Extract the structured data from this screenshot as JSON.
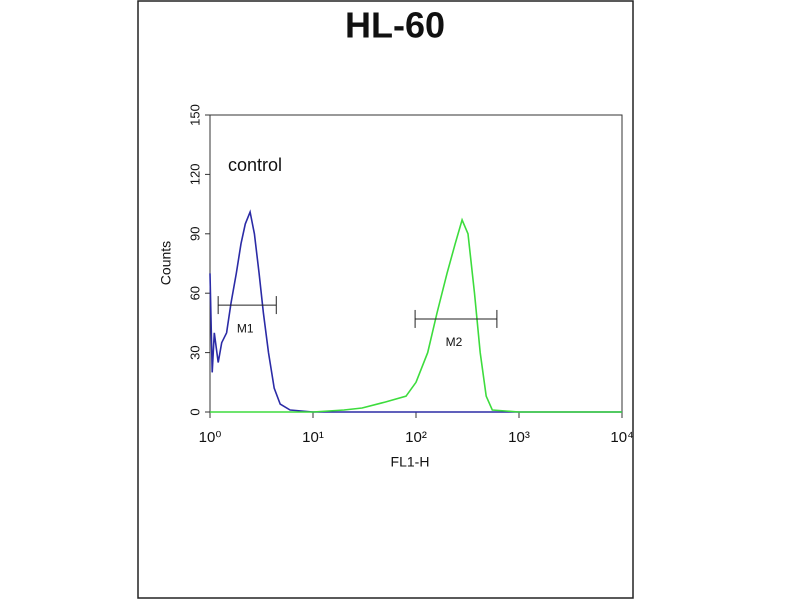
{
  "chart_data": {
    "type": "line",
    "title": "HL-60",
    "x_label": "FL1-H",
    "y_label": "Counts",
    "annotation": "control",
    "xscale": "log",
    "xlim": [
      1,
      10000
    ],
    "ylim": [
      0,
      150
    ],
    "xticks": [
      {
        "value": 1,
        "label": "10⁰"
      },
      {
        "value": 10,
        "label": "10¹"
      },
      {
        "value": 100,
        "label": "10²"
      },
      {
        "value": 1000,
        "label": "10³"
      },
      {
        "value": 10000,
        "label": "10⁴"
      }
    ],
    "yticks": [
      0,
      30,
      60,
      90,
      120,
      150
    ],
    "series": [
      {
        "color": "#2b2ba6",
        "x": [
          1,
          1.05,
          1.1,
          1.2,
          1.3,
          1.45,
          1.6,
          1.8,
          2,
          2.2,
          2.45,
          2.7,
          3,
          3.3,
          3.7,
          4.2,
          4.8,
          6,
          10,
          100,
          1000,
          10000
        ],
        "values": [
          70,
          20,
          40,
          25,
          35,
          40,
          55,
          70,
          85,
          95,
          101,
          90,
          70,
          50,
          30,
          12,
          4,
          1,
          0,
          0,
          0,
          0
        ]
      },
      {
        "color": "#3ddc3d",
        "x": [
          1,
          10,
          20,
          30,
          50,
          80,
          100,
          130,
          160,
          200,
          240,
          280,
          320,
          370,
          420,
          480,
          550,
          1000,
          10000
        ],
        "values": [
          0,
          0,
          1,
          2,
          5,
          8,
          15,
          30,
          50,
          70,
          85,
          97,
          90,
          60,
          30,
          8,
          1,
          0,
          0
        ]
      }
    ],
    "markers": [
      {
        "label": "M1",
        "start": 1.2,
        "end": 4.4,
        "y": 54
      },
      {
        "label": "M2",
        "start": 98,
        "end": 610,
        "y": 47
      }
    ]
  }
}
